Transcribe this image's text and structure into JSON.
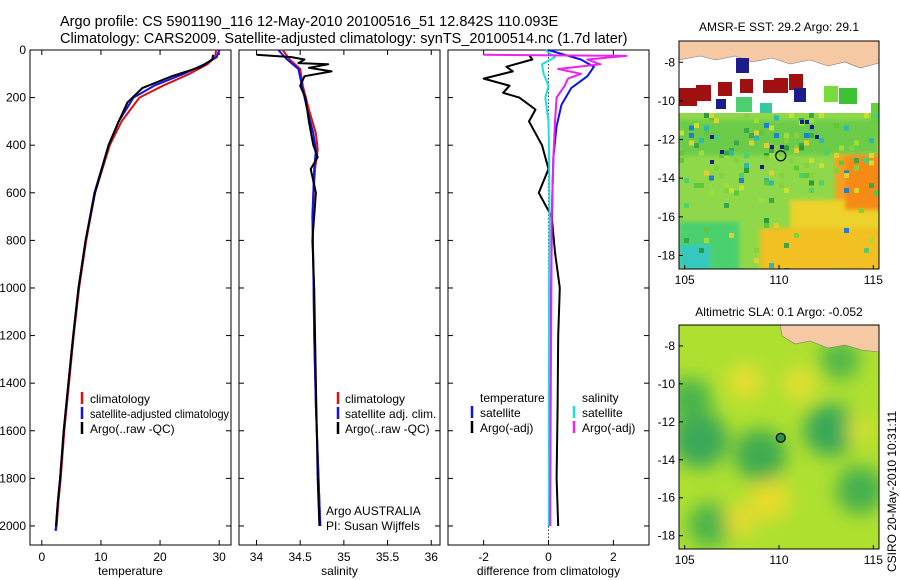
{
  "header": {
    "line1": "Argo profile: CS 5901190_116 12-May-2010 20100516_51 12.842S 110.093E",
    "line2": "Climatology: CARS2009. Satellite-adjusted climatology: synTS_20100514.nc (1.7d later)"
  },
  "side_text": "CSIRO 20-May-2010 10:31:11",
  "colors": {
    "climatology": "#dd1111",
    "satellite": "#1111ee",
    "argo": "#000000",
    "salinity_sat": "#22dddd",
    "salinity_argo": "#ee22ee"
  },
  "chart_data": [
    {
      "type": "line",
      "id": "temperature",
      "xlabel": "temperature",
      "ylabel": "",
      "xlim": [
        -2,
        32
      ],
      "ylim": [
        2080,
        0
      ],
      "xticks": [
        0,
        10,
        20,
        30
      ],
      "yticks": [
        0,
        200,
        400,
        600,
        800,
        1000,
        1200,
        1400,
        1600,
        1800,
        2000
      ],
      "legend": [
        "climatology",
        "satellite-adjusted climatology",
        "Argo(..raw -QC)"
      ],
      "series": [
        {
          "name": "climatology",
          "color": "#dd1111",
          "x": [
            29.5,
            29.3,
            28.0,
            25.0,
            20.5,
            16.5,
            13.5,
            11.5,
            9.0,
            7.5,
            6.3,
            5.4,
            4.6,
            3.8,
            3.2,
            2.8,
            2.5,
            2.4
          ],
          "y": [
            0,
            30,
            60,
            100,
            150,
            200,
            300,
            400,
            600,
            800,
            1000,
            1200,
            1400,
            1600,
            1800,
            1900,
            2000,
            2020
          ]
        },
        {
          "name": "satellite-adjusted climatology",
          "color": "#1111ee",
          "x": [
            30.0,
            29.6,
            27.5,
            24.0,
            19.0,
            15.5,
            13.0,
            11.3,
            8.9,
            7.4,
            6.2,
            5.3,
            4.5,
            3.7,
            3.1,
            2.7,
            2.4,
            2.3
          ],
          "y": [
            0,
            30,
            60,
            100,
            150,
            200,
            300,
            400,
            600,
            800,
            1000,
            1200,
            1400,
            1600,
            1800,
            1900,
            2000,
            2020
          ]
        },
        {
          "name": "Argo(..raw -QC)",
          "color": "#000000",
          "x": [
            29.0,
            28.8,
            27.0,
            22.0,
            17.0,
            14.5,
            13.0,
            11.3,
            9.0,
            7.4,
            6.2,
            5.3,
            4.5,
            3.7,
            3.1,
            2.7,
            2.4
          ],
          "y": [
            20,
            40,
            70,
            110,
            160,
            220,
            300,
            400,
            600,
            800,
            1000,
            1200,
            1400,
            1600,
            1800,
            1900,
            2000
          ]
        }
      ]
    },
    {
      "type": "line",
      "id": "salinity",
      "xlabel": "salinity",
      "ylabel": "",
      "xlim": [
        33.8,
        36.1
      ],
      "ylim": [
        2080,
        0
      ],
      "xticks": [
        34,
        34.5,
        35,
        35.5,
        36
      ],
      "xticklabels": [
        "34",
        "34.5",
        "35",
        "35.5",
        "36"
      ],
      "legend": [
        "climatology",
        "satellite adj. clim.",
        "Argo(..raw -QC)"
      ],
      "annotation": [
        "Argo AUSTRALIA",
        "PI: Susan Wijffels"
      ],
      "series": [
        {
          "name": "climatology",
          "color": "#dd1111",
          "x": [
            34.3,
            34.38,
            34.5,
            34.53,
            34.6,
            34.68,
            34.7,
            34.67,
            34.64,
            34.65,
            34.66,
            34.68,
            34.7,
            34.72,
            34.73
          ],
          "y": [
            0,
            40,
            80,
            150,
            250,
            350,
            420,
            500,
            700,
            900,
            1200,
            1500,
            1700,
            1900,
            2000
          ]
        },
        {
          "name": "satellite adj. clim.",
          "color": "#1111ee",
          "x": [
            34.25,
            34.35,
            34.48,
            34.52,
            34.58,
            34.65,
            34.68,
            34.66,
            34.64,
            34.65,
            34.66,
            34.68,
            34.7,
            34.72,
            34.73
          ],
          "y": [
            0,
            40,
            80,
            150,
            250,
            350,
            420,
            500,
            700,
            900,
            1200,
            1500,
            1700,
            1900,
            2000
          ]
        },
        {
          "name": "Argo(..raw -QC)",
          "color": "#000000",
          "x": [
            34.0,
            34.4,
            34.55,
            34.48,
            34.82,
            34.6,
            34.86,
            34.55,
            34.5,
            34.56,
            34.6,
            34.65,
            34.7,
            34.62,
            34.68,
            34.64,
            34.66,
            34.68,
            34.7,
            34.72
          ],
          "y": [
            20,
            30,
            40,
            55,
            60,
            75,
            90,
            110,
            150,
            200,
            300,
            400,
            450,
            500,
            600,
            800,
            1000,
            1400,
            1800,
            2000
          ]
        }
      ]
    },
    {
      "type": "line",
      "id": "difference",
      "xlabel": "difference from climatology",
      "ylabel": "",
      "xlim": [
        -3.1,
        3.1
      ],
      "ylim": [
        2080,
        0
      ],
      "xticks": [
        -2,
        0,
        2
      ],
      "legend": [
        "temperature",
        "satellite",
        "Argo(-adj)",
        "salinity",
        "satellite",
        "Argo(-adj)"
      ],
      "series": [
        {
          "name": "temperature satellite",
          "color": "#1111ee",
          "x": [
            0.0,
            0.5,
            1.0,
            1.4,
            1.2,
            0.7,
            0.4,
            0.25,
            0.15,
            0.12,
            0.1,
            0.08,
            0.06,
            0.05,
            0.05
          ],
          "y": [
            0,
            20,
            40,
            70,
            110,
            160,
            230,
            320,
            450,
            600,
            800,
            1000,
            1400,
            1800,
            2000
          ]
        },
        {
          "name": "temperature Argo(-adj)",
          "color": "#000000",
          "x": [
            -0.6,
            -0.5,
            -1.3,
            -1.1,
            -2.0,
            -1.2,
            -1.4,
            -0.9,
            -0.4,
            -0.6,
            -0.2,
            0.0,
            -0.3,
            0.1,
            0.2,
            0.35,
            0.3,
            0.28,
            0.25,
            0.3
          ],
          "y": [
            20,
            40,
            70,
            90,
            120,
            150,
            180,
            200,
            250,
            300,
            400,
            500,
            600,
            700,
            850,
            1000,
            1200,
            1500,
            1800,
            2000
          ]
        },
        {
          "name": "salinity satellite",
          "color": "#22dddd",
          "x": [
            -0.1,
            0.2,
            -0.2,
            -0.15,
            0.0,
            -0.1,
            0.0,
            0.02,
            0.03,
            0.02,
            0.01,
            0.01
          ],
          "y": [
            0,
            30,
            60,
            100,
            150,
            200,
            300,
            450,
            700,
            1000,
            1500,
            2000
          ]
        },
        {
          "name": "salinity Argo(-adj)",
          "color": "#ee22ee",
          "x": [
            -2.0,
            2.4,
            1.2,
            1.6,
            0.3,
            1.0,
            0.6,
            0.5,
            0.25,
            0.2,
            0.15,
            0.1,
            0.08,
            0.05
          ],
          "y": [
            20,
            25,
            40,
            60,
            80,
            100,
            120,
            150,
            200,
            300,
            450,
            700,
            1200,
            2000
          ]
        }
      ]
    },
    {
      "type": "heatmap",
      "id": "sst-map",
      "title": "AMSR-E SST: 29.2 Argo: 29.1",
      "xlim": [
        104.7,
        115.3
      ],
      "ylim": [
        -18.7,
        -6.9
      ],
      "xticks": [
        105,
        110,
        115
      ],
      "yticks": [
        -8,
        -10,
        -12,
        -14,
        -16,
        -18
      ],
      "argo_position": [
        110.093,
        -12.842
      ]
    },
    {
      "type": "heatmap",
      "id": "sla-map",
      "title": "Altimetric SLA: 0.1 Argo: -0.052",
      "xlim": [
        104.7,
        115.3
      ],
      "ylim": [
        -18.7,
        -6.9
      ],
      "xticks": [
        105,
        110,
        115
      ],
      "yticks": [
        -8,
        -10,
        -12,
        -14,
        -16,
        -18
      ],
      "argo_position": [
        110.093,
        -12.842
      ]
    }
  ]
}
